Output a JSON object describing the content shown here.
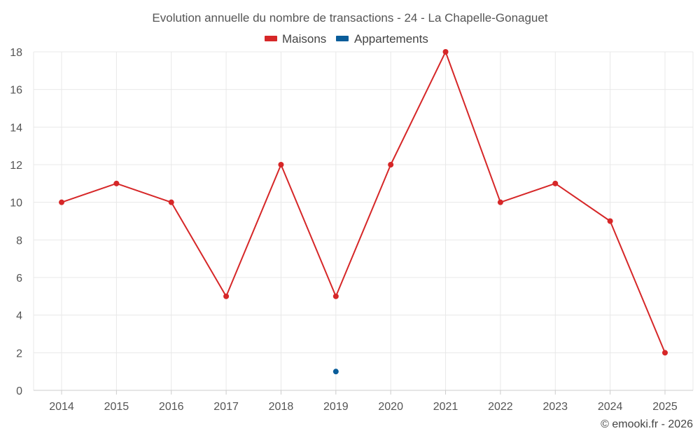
{
  "chart_data": {
    "type": "line",
    "title": "Evolution annuelle du nombre de transactions - 24 - La Chapelle-Gonaguet",
    "categories": [
      "2014",
      "2015",
      "2016",
      "2017",
      "2018",
      "2019",
      "2020",
      "2021",
      "2022",
      "2023",
      "2024",
      "2025"
    ],
    "series": [
      {
        "name": "Maisons",
        "color": "#d62728",
        "values": [
          10,
          11,
          10,
          5,
          12,
          5,
          12,
          18,
          10,
          11,
          9,
          2
        ]
      },
      {
        "name": "Appartements",
        "color": "#0a5d9a",
        "values": [
          null,
          null,
          null,
          null,
          null,
          1,
          null,
          null,
          null,
          null,
          null,
          null
        ]
      }
    ],
    "ylim": [
      0,
      18
    ],
    "yticks": [
      0,
      2,
      4,
      6,
      8,
      10,
      12,
      14,
      16,
      18
    ],
    "xlabel": "",
    "ylabel": "",
    "grid": true,
    "legend_position": "top-center"
  },
  "credit": "© emooki.fr - 2026"
}
